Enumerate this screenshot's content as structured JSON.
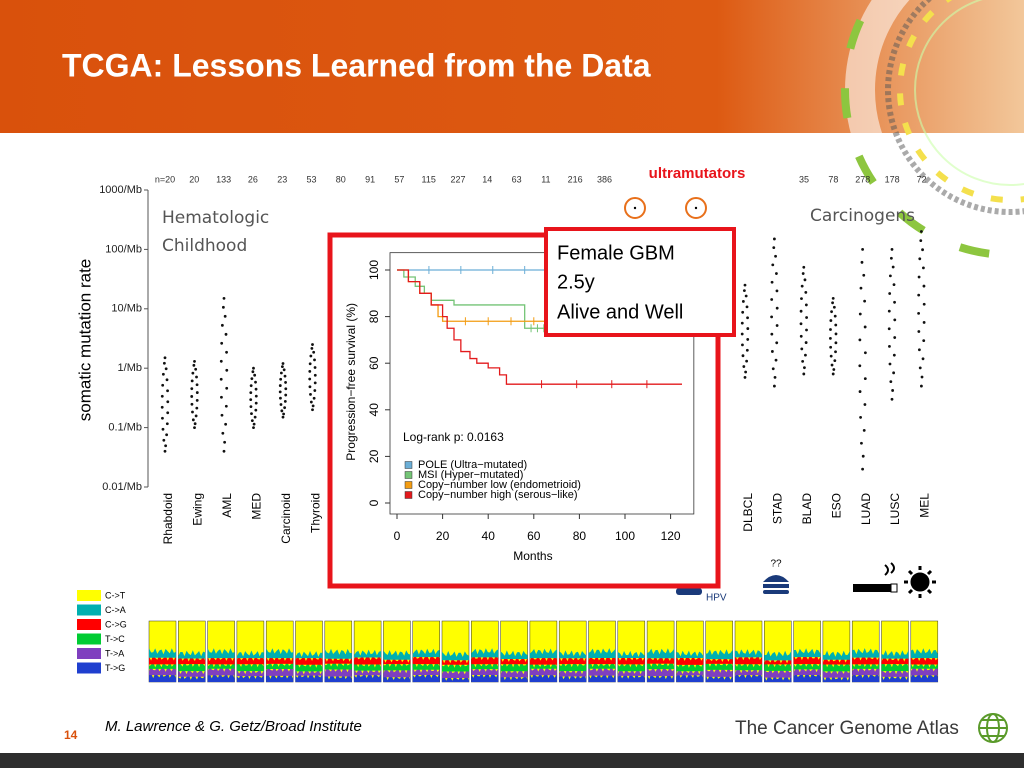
{
  "header": {
    "title": "TCGA:  Lessons Learned from the Data"
  },
  "chart_data": [
    {
      "type": "scatter",
      "y_label": "somatic mutation rate",
      "log_scale": true,
      "ylim": [
        0.01,
        1000
      ],
      "yticks": [
        {
          "value": 1000,
          "label": "1000/Mb"
        },
        {
          "value": 100,
          "label": "100/Mb"
        },
        {
          "value": 10,
          "label": "10/Mb"
        },
        {
          "value": 1,
          "label": "1/Mb"
        },
        {
          "value": 0.1,
          "label": "0.1/Mb"
        },
        {
          "value": 0.01,
          "label": "0.01/Mb"
        }
      ],
      "group_label_left": [
        "Hematologic",
        "Childhood"
      ],
      "group_label_right": "Carcinogens",
      "annotation": "ultramutators",
      "n_labels_left": [
        "n=20",
        "20",
        "133",
        "26",
        "23",
        "53",
        "80",
        "91",
        "57",
        "115",
        "227",
        "14",
        "63",
        "11",
        "216",
        "386"
      ],
      "n_labels_right": [
        "35",
        "78",
        "278",
        "178",
        "72"
      ],
      "categories_left": [
        "Rhabdoid",
        "Ewing",
        "AML",
        "MED",
        "Carcinoid",
        "Thyroid"
      ],
      "ranges_left": [
        [
          0.04,
          1.5
        ],
        [
          0.1,
          1.3
        ],
        [
          0.04,
          15
        ],
        [
          0.1,
          1
        ],
        [
          0.15,
          1.2
        ],
        [
          0.2,
          2.5
        ]
      ],
      "categories_right": [
        "DLBCL",
        "STAD",
        "BLAD",
        "ESO",
        "LUAD",
        "LUSC",
        "MEL"
      ],
      "ranges_right": [
        [
          0.7,
          25
        ],
        [
          0.5,
          150
        ],
        [
          0.8,
          50
        ],
        [
          0.8,
          15
        ],
        [
          0.02,
          100
        ],
        [
          0.3,
          100
        ],
        [
          0.5,
          200
        ]
      ],
      "color": "#111111"
    },
    {
      "type": "line",
      "step": true,
      "x_label": "Months",
      "y_label": "Progression−free survival (%)",
      "annotation": "Log-rank p:  0.0163",
      "xlim": [
        0,
        128
      ],
      "ylim": [
        0,
        104
      ],
      "xticks": [
        0,
        20,
        40,
        60,
        80,
        100,
        120
      ],
      "yticks": [
        0,
        20,
        40,
        60,
        80,
        100
      ],
      "legend": "bottom-left",
      "series": [
        {
          "name": "POLE (Ultra−mutated)",
          "color": "#6baed6",
          "x": [
            0,
            70
          ],
          "values": [
            100,
            100
          ]
        },
        {
          "name": "MSI (Hyper−mutated)",
          "color": "#74c476",
          "x": [
            0,
            3,
            8,
            12,
            15,
            25,
            56,
            70
          ],
          "values": [
            100,
            97,
            93,
            90,
            87,
            85,
            75,
            75
          ]
        },
        {
          "name": "Copy−number low (endometrioid)",
          "color": "#f39c12",
          "x": [
            0,
            5,
            10,
            15,
            18,
            20,
            70
          ],
          "values": [
            100,
            95,
            90,
            85,
            80,
            78,
            78
          ]
        },
        {
          "name": "Copy−number high (serous−like)",
          "color": "#e31a1c",
          "x": [
            0,
            5,
            10,
            15,
            20,
            22,
            25,
            28,
            32,
            35,
            40,
            45,
            48,
            125
          ],
          "values": [
            100,
            95,
            90,
            85,
            80,
            75,
            70,
            65,
            62,
            60,
            58,
            55,
            51,
            51
          ]
        }
      ]
    }
  ],
  "callout": {
    "lines": [
      "Female GBM",
      "2.5y",
      "Alive and Well"
    ]
  },
  "icons": {
    "virus": "HPV",
    "diet": "??"
  },
  "spectrum_legend": [
    {
      "name": "C->T",
      "color": "#ffff00"
    },
    {
      "name": "C->A",
      "color": "#00b0b0"
    },
    {
      "name": "C->G",
      "color": "#ff0000"
    },
    {
      "name": "T->C",
      "color": "#00cc33"
    },
    {
      "name": "T->A",
      "color": "#7f3fbf"
    },
    {
      "name": "T->G",
      "color": "#1f3fcf"
    }
  ],
  "footer": {
    "page": "14",
    "credit": "M. Lawrence & G. Getz/Broad Institute",
    "logo": "The Cancer Genome Atlas"
  }
}
